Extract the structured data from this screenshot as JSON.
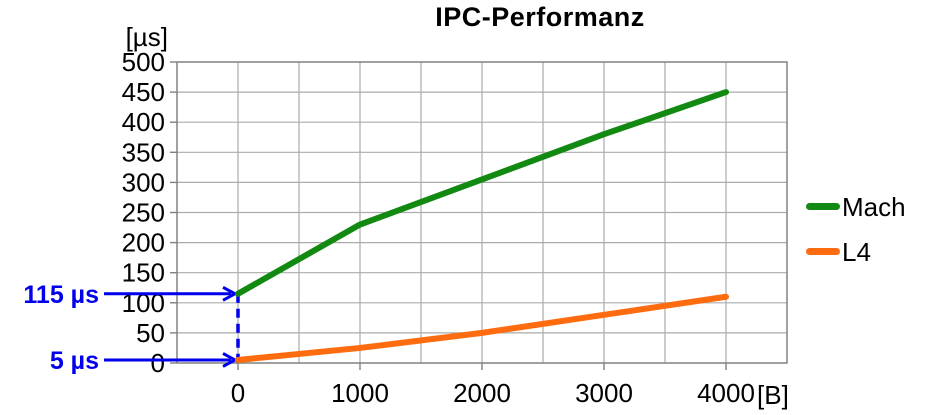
{
  "chart_data": {
    "type": "line",
    "title": "IPC-Performanz",
    "ylabel_unit": "[µs]",
    "xlabel_unit": "[B]",
    "x": [
      0,
      1000,
      2000,
      3000,
      4000
    ],
    "series": [
      {
        "name": "Mach",
        "color": "#128A12",
        "values": [
          115,
          230,
          305,
          380,
          450
        ]
      },
      {
        "name": "L4",
        "color": "#FF6B0F",
        "values": [
          5,
          25,
          50,
          80,
          110
        ]
      }
    ],
    "ylim": [
      0,
      500
    ],
    "ytick_step": 50,
    "xlim": [
      -500,
      4500
    ],
    "xticks": [
      0,
      1000,
      2000,
      3000,
      4000
    ],
    "x_grid_step": 500,
    "grid": true,
    "legend_position": "right",
    "annotations": [
      {
        "text": "115 µs",
        "value": 115
      },
      {
        "text": "5 µs",
        "value": 5
      }
    ]
  },
  "colors": {
    "grid": "#ABABAB",
    "axis": "#808080",
    "annotation": "#0000EE",
    "title": "#000000"
  }
}
